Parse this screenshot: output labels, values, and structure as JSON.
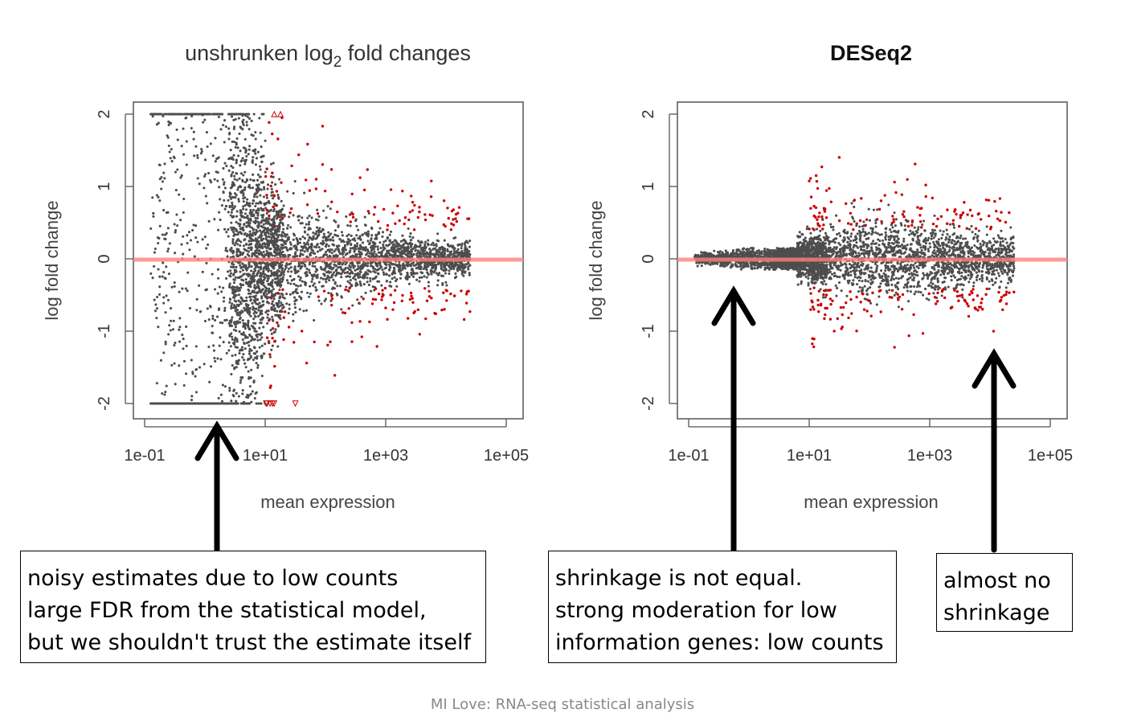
{
  "chart_data": [
    {
      "type": "scatter",
      "title": "unshrunken log2 fold changes",
      "xlabel": "mean expression",
      "ylabel": "log fold change",
      "xscale": "log10",
      "xlim": [
        0.07,
        150000
      ],
      "ylim": [
        -2,
        2
      ],
      "xticks": [
        "1e-01",
        "1e+01",
        "1e+03",
        "1e+05"
      ],
      "yticks": [
        "2",
        "1",
        "0",
        "-1",
        "-2"
      ],
      "reference_line": {
        "y": 0,
        "color": "#ff8080"
      },
      "series": [
        {
          "color": "#4d4d4d",
          "note": "non-significant genes; LFC spread widely, clipped at ±2 for low mean expression"
        },
        {
          "color": "#cc0000",
          "note": "significant genes (mean > 10); triangles mark clipped points at ±2"
        }
      ]
    },
    {
      "type": "scatter",
      "title": "DESeq2",
      "xlabel": "mean expression",
      "ylabel": "log fold change",
      "xscale": "log10",
      "xlim": [
        0.07,
        150000
      ],
      "ylim": [
        -2,
        2
      ],
      "xticks": [
        "1e-01",
        "1e+01",
        "1e+03",
        "1e+05"
      ],
      "yticks": [
        "2",
        "1",
        "0",
        "-1",
        "-2"
      ],
      "reference_line": {
        "y": 0,
        "color": "#ff8080"
      },
      "series": [
        {
          "color": "#4d4d4d",
          "note": "non-significant genes; LFC shrunk toward 0 at low mean expression"
        },
        {
          "color": "#cc0000",
          "note": "significant genes"
        }
      ]
    }
  ],
  "plots": {
    "left_title_main": "unshrunken log",
    "left_title_sub": "2",
    "left_title_rest": " fold changes",
    "right_title": "DESeq2",
    "xlabel": "mean expression",
    "ylabel": "log fold change"
  },
  "notes": {
    "left": [
      "noisy estimates due to low counts",
      "large FDR from the statistical model,",
      "but we shouldn't trust the estimate itself"
    ],
    "middle": [
      "shrinkage is not equal.",
      "strong moderation for low",
      "information genes: low counts"
    ],
    "right": [
      "almost no",
      "shrinkage"
    ]
  },
  "footer": "MI Love: RNA-seq statistical analysis"
}
